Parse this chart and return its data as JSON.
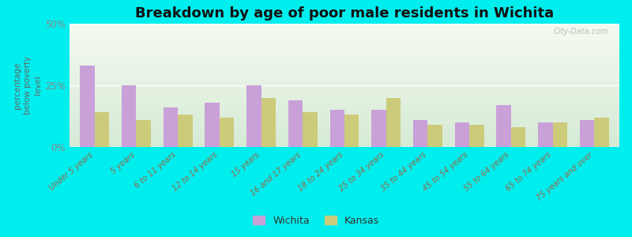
{
  "title": "Breakdown by age of poor male residents in Wichita",
  "ylabel": "percentage\nbelow poverty\nlevel",
  "categories": [
    "Under 5 years",
    "5 years",
    "6 to 11 years",
    "12 to 14 years",
    "15 years",
    "16 and 17 years",
    "18 to 24 years",
    "25 to 34 years",
    "35 to 44 years",
    "45 to 54 years",
    "55 to 64 years",
    "65 to 74 years",
    "75 years and over"
  ],
  "wichita": [
    33,
    25,
    16,
    18,
    25,
    19,
    15,
    15,
    11,
    10,
    17,
    10,
    11
  ],
  "kansas": [
    14,
    11,
    13,
    12,
    20,
    14,
    13,
    20,
    9,
    9,
    8,
    10,
    12
  ],
  "wichita_color": "#c9a0d8",
  "kansas_color": "#cccb7a",
  "outer_bg": "#00eeee",
  "plot_bg_top": "#f5f8e8",
  "plot_bg_bottom": "#ddeedd",
  "ylim": [
    0,
    50
  ],
  "yticks": [
    0,
    25,
    50
  ],
  "ytick_labels": [
    "0%",
    "25%",
    "50%"
  ],
  "title_fontsize": 13,
  "bar_width": 0.35,
  "legend_fontsize": 9,
  "tick_label_color": "#996644",
  "ylabel_color": "#666666",
  "ytick_color": "#888888"
}
